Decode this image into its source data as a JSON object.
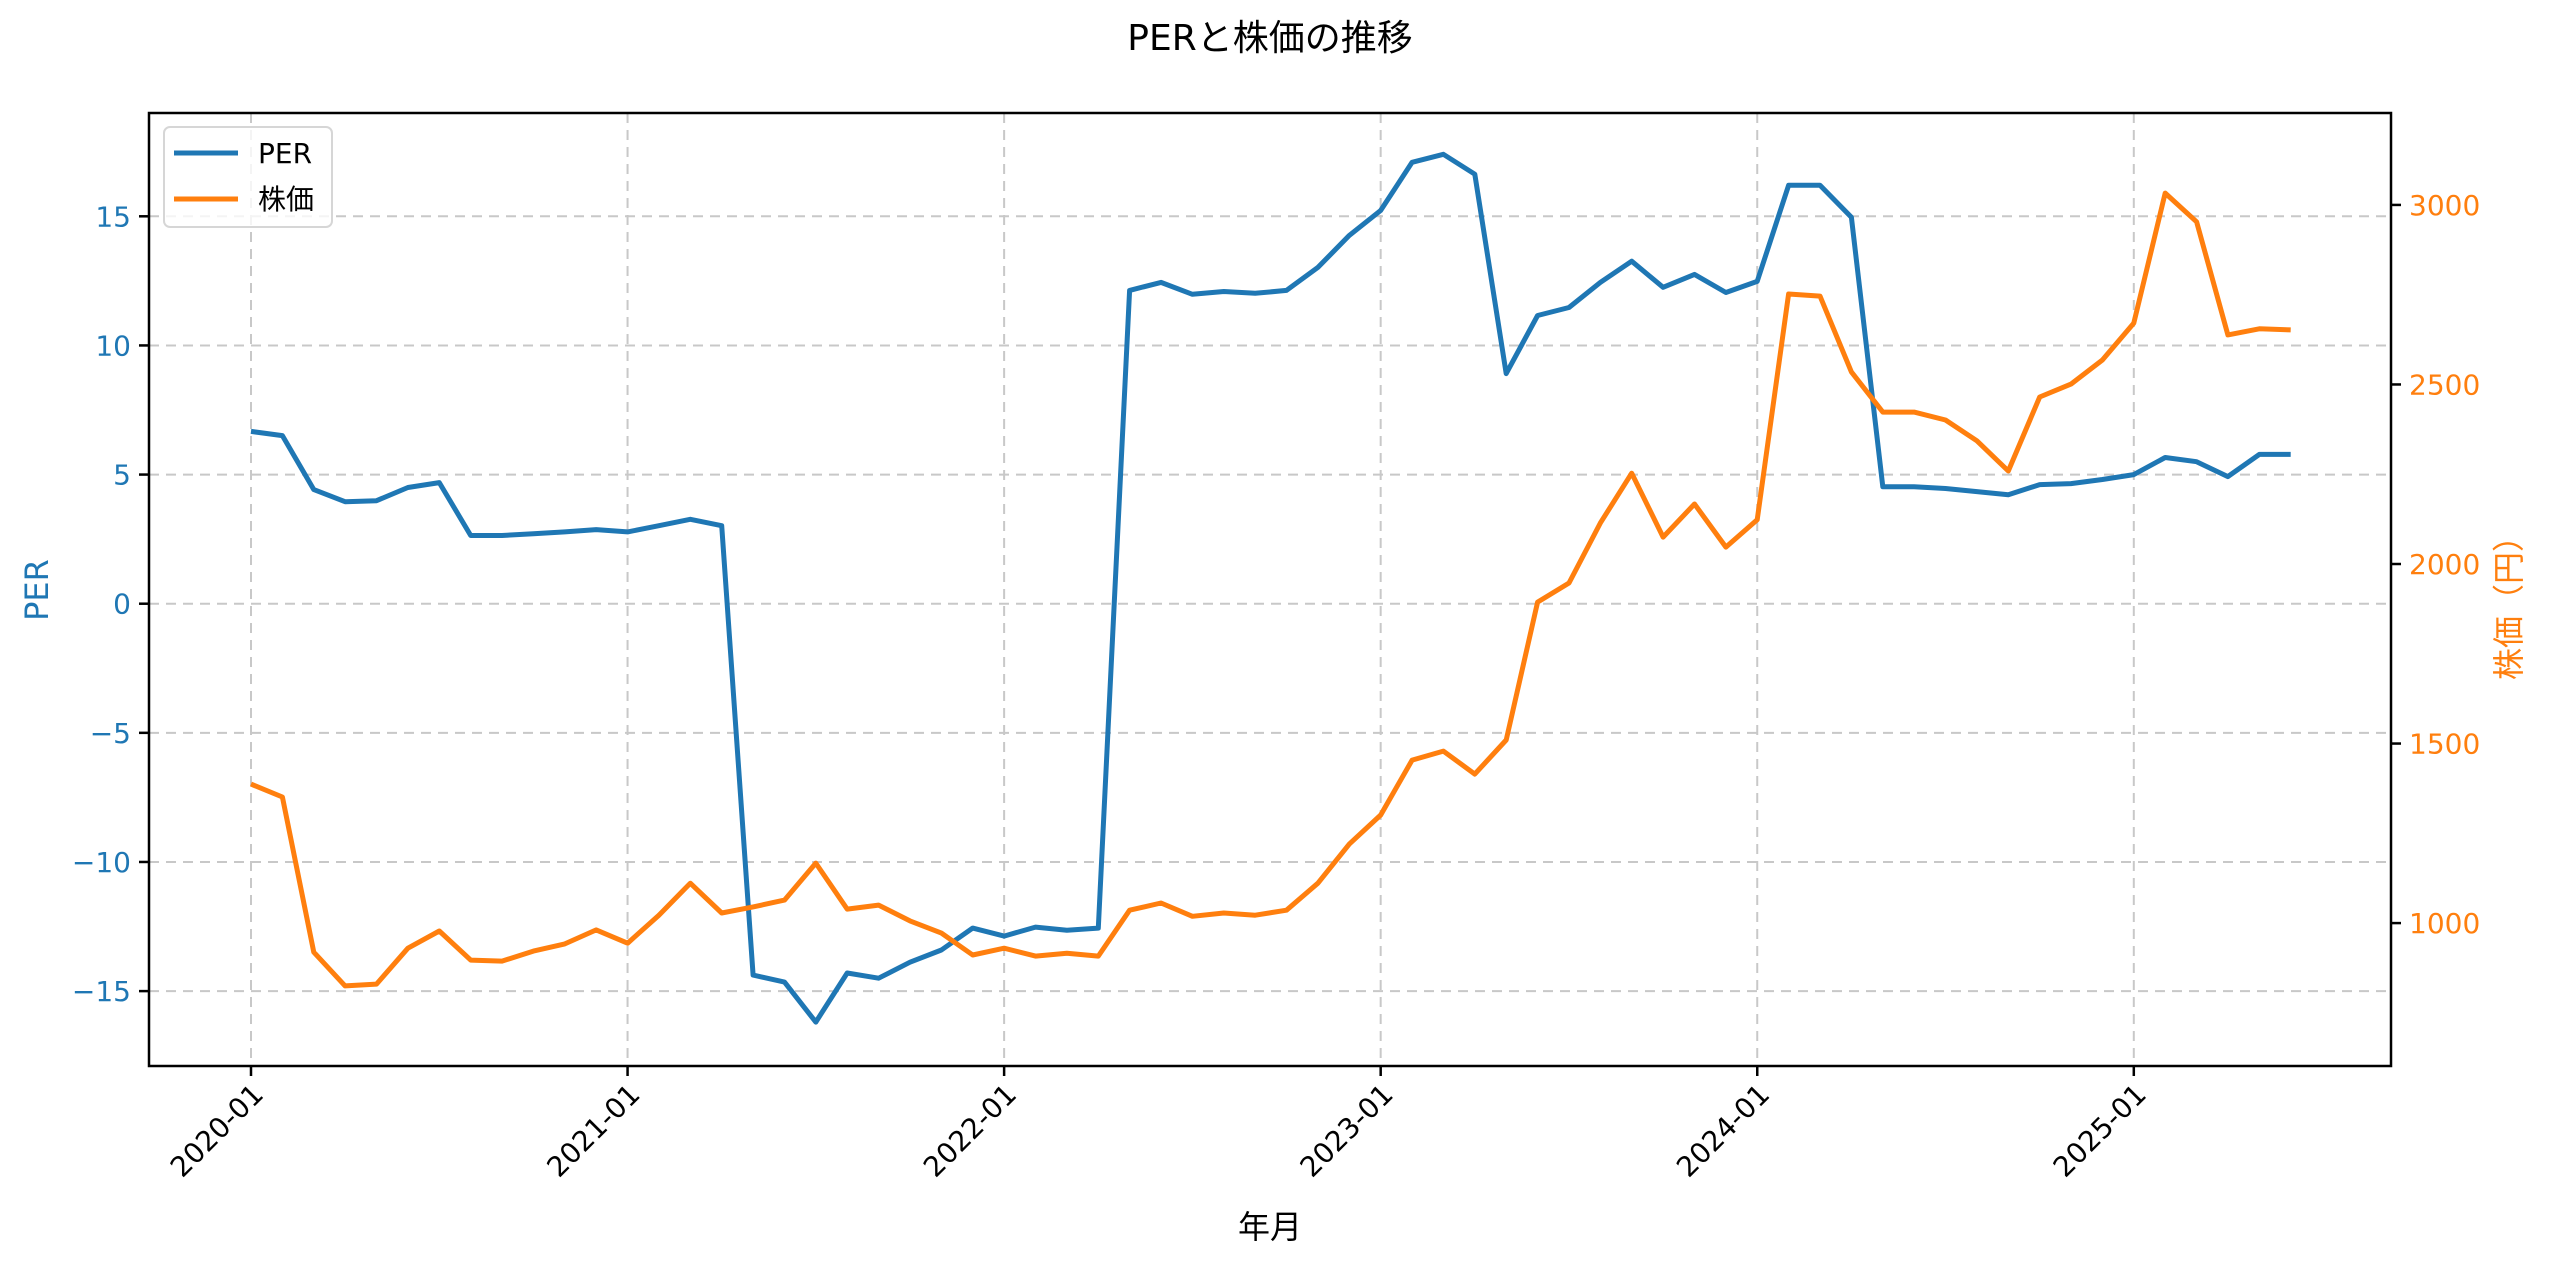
{
  "chart_data": {
    "type": "line",
    "title": "PERと株価の推移",
    "xlabel": "年月",
    "ylabel_left": "PER",
    "ylabel_right": "株価（円）",
    "grid": true,
    "legend_position": "upper left",
    "ylim_left": [
      -17.9,
      19.0
    ],
    "ylim_right": [
      602,
      3256
    ],
    "x_ticks": [
      "2020-01",
      "2021-01",
      "2022-01",
      "2023-01",
      "2024-01",
      "2025-01"
    ],
    "y_ticks_left": [
      -15,
      -10,
      -5,
      0,
      5,
      10,
      15
    ],
    "y_ticks_right": [
      1000,
      1500,
      2000,
      2500,
      3000
    ],
    "x": [
      "2020-01",
      "2020-02",
      "2020-03",
      "2020-04",
      "2020-05",
      "2020-06",
      "2020-07",
      "2020-08",
      "2020-09",
      "2020-10",
      "2020-11",
      "2020-12",
      "2021-01",
      "2021-02",
      "2021-03",
      "2021-04",
      "2021-05",
      "2021-06",
      "2021-07",
      "2021-08",
      "2021-09",
      "2021-10",
      "2021-11",
      "2021-12",
      "2022-01",
      "2022-02",
      "2022-03",
      "2022-04",
      "2022-05",
      "2022-06",
      "2022-07",
      "2022-08",
      "2022-09",
      "2022-10",
      "2022-11",
      "2022-12",
      "2023-01",
      "2023-02",
      "2023-03",
      "2023-04",
      "2023-05",
      "2023-06",
      "2023-07",
      "2023-08",
      "2023-09",
      "2023-10",
      "2023-11",
      "2023-12",
      "2024-01",
      "2024-02",
      "2024-03",
      "2024-04",
      "2024-05",
      "2024-06",
      "2024-07",
      "2024-08",
      "2024-09",
      "2024-10",
      "2024-11",
      "2024-12",
      "2025-01",
      "2025-02",
      "2025-03",
      "2025-04",
      "2025-05",
      "2025-06"
    ],
    "series": [
      {
        "name": "PER",
        "axis": "left",
        "color": "#1f77b4",
        "values": [
          6.67,
          6.51,
          4.42,
          3.95,
          3.99,
          4.5,
          4.69,
          2.64,
          2.64,
          2.71,
          2.78,
          2.87,
          2.78,
          3.02,
          3.27,
          3.02,
          -14.38,
          -14.65,
          -16.2,
          -14.3,
          -14.5,
          -13.88,
          -13.41,
          -12.56,
          -12.87,
          -12.52,
          -12.64,
          -12.56,
          12.13,
          12.44,
          11.98,
          12.09,
          12.02,
          12.13,
          13.02,
          14.26,
          15.23,
          17.09,
          17.4,
          16.63,
          8.91,
          11.16,
          11.47,
          12.44,
          13.26,
          12.25,
          12.75,
          12.05,
          12.48,
          16.2,
          16.2,
          14.96,
          4.53,
          4.53,
          4.46,
          4.34,
          4.22,
          4.61,
          4.65,
          4.81,
          5.0,
          5.66,
          5.5,
          4.92,
          5.78,
          5.78
        ]
      },
      {
        "name": "株価",
        "axis": "right",
        "color": "#ff7f0e",
        "values": [
          1387,
          1351,
          919,
          825,
          830,
          930,
          978,
          897,
          894,
          922,
          942,
          981,
          944,
          1022,
          1111,
          1028,
          1045,
          1064,
          1167,
          1039,
          1050,
          1006,
          972,
          911,
          930,
          908,
          916,
          908,
          1036,
          1056,
          1019,
          1028,
          1022,
          1036,
          1111,
          1220,
          1301,
          1454,
          1479,
          1415,
          1510,
          1894,
          1947,
          2114,
          2253,
          2075,
          2167,
          2047,
          2123,
          2752,
          2746,
          2535,
          2423,
          2423,
          2401,
          2343,
          2259,
          2465,
          2501,
          2568,
          2671,
          3033,
          2953,
          2638,
          2655,
          2652
        ]
      }
    ]
  },
  "legend": {
    "items": [
      {
        "label": "PER",
        "color": "#1f77b4"
      },
      {
        "label": "株価",
        "color": "#ff7f0e"
      }
    ]
  },
  "colors": {
    "left_axis": "#1f77b4",
    "right_axis": "#ff7f0e",
    "grid": "#c8c8c8",
    "frame": "#000000"
  }
}
